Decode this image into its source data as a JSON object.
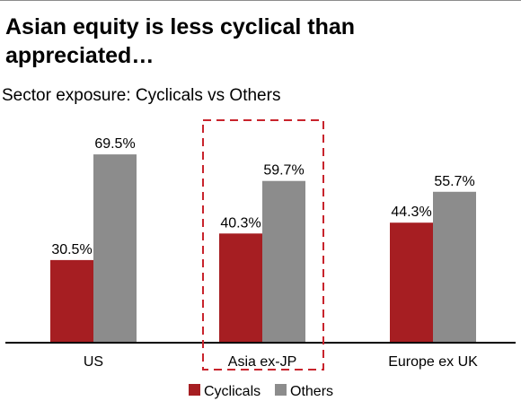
{
  "page": {
    "title": "Asian equity is less cyclical than appreciated…",
    "subtitle": "Sector exposure: Cyclicals vs Others"
  },
  "colors": {
    "cyclicals": "#a61e22",
    "others": "#8c8c8c",
    "highlight_box": "#c8232c",
    "axis": "#000000"
  },
  "chart_data": {
    "type": "bar",
    "title": "Asian equity is less cyclical than appreciated…",
    "subtitle": "Sector exposure: Cyclicals vs Others",
    "categories": [
      "US",
      "Asia ex-JP",
      "Europe ex UK"
    ],
    "series": [
      {
        "name": "Cyclicals",
        "values": [
          30.5,
          40.3,
          44.3
        ],
        "labels": [
          "30.5%",
          "40.3%",
          "44.3%"
        ]
      },
      {
        "name": "Others",
        "values": [
          69.5,
          59.7,
          55.7
        ],
        "labels": [
          "69.5%",
          "59.7%",
          "55.7%"
        ]
      }
    ],
    "xlabel": "",
    "ylabel": "",
    "ylim": [
      0,
      100
    ],
    "grid": false,
    "legend": "bottom-center",
    "highlighted_category": "Asia ex-JP"
  }
}
